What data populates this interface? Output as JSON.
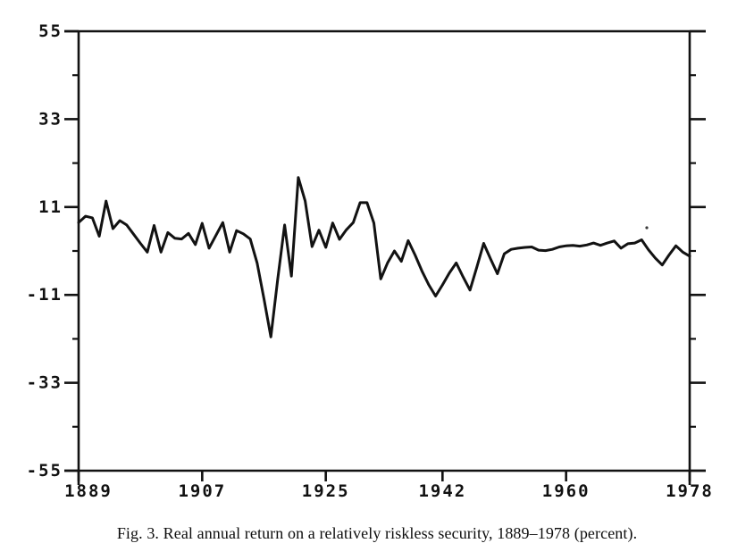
{
  "figure": {
    "caption": "Fig. 3.  Real annual return on a relatively riskless security, 1889–1978 (percent)."
  },
  "chart_data": {
    "type": "line",
    "title": "",
    "xlabel": "",
    "ylabel": "",
    "xlim": [
      1889,
      1978
    ],
    "ylim": [
      -55,
      55
    ],
    "x_ticks": [
      1889,
      1907,
      1925,
      1942,
      1960,
      1978
    ],
    "x_tick_labels": [
      "1889",
      "1907",
      "1925",
      "1942",
      "1960",
      "1978"
    ],
    "y_ticks": [
      55,
      33,
      11,
      -11,
      -33,
      -55
    ],
    "y_tick_labels": [
      "55",
      "33",
      "11",
      "-11",
      "-33",
      "-55"
    ],
    "y_minor_ticks": [
      44,
      22,
      0,
      -22,
      -44
    ],
    "grid": false,
    "frame": true,
    "legend": null,
    "line_color": "#121212",
    "background_color": "#ffffff",
    "series": [
      {
        "name": "Real annual return on a relatively riskless security (percent)",
        "x_start": 1889,
        "x_step": 1,
        "values": [
          7.1,
          8.7,
          8.3,
          3.7,
          12.5,
          5.6,
          7.6,
          6.5,
          4.2,
          1.9,
          -0.3,
          6.4,
          -0.3,
          4.6,
          3.2,
          3.0,
          4.4,
          1.6,
          6.9,
          0.7,
          3.9,
          7.1,
          -0.3,
          5.1,
          4.3,
          3.0,
          -3.0,
          -12.0,
          -21.5,
          -7.0,
          6.5,
          -6.3,
          18.4,
          12.5,
          1.1,
          5.2,
          0.9,
          7.0,
          2.9,
          5.3,
          7.1,
          12.1,
          12.1,
          7.0,
          -7.0,
          -3.0,
          0.0,
          -2.6,
          2.6,
          -1.0,
          -5.0,
          -8.5,
          -11.3,
          -8.5,
          -5.5,
          -3.0,
          -6.5,
          -9.8,
          -4.0,
          1.9,
          -2.0,
          -5.7,
          -0.7,
          0.4,
          0.7,
          0.9,
          1.0,
          0.2,
          0.1,
          0.4,
          1.0,
          1.3,
          1.4,
          1.2,
          1.5,
          2.0,
          1.4,
          2.0,
          2.5,
          0.7,
          1.8,
          2.0,
          2.8,
          0.3,
          -1.8,
          -3.5,
          -1.0,
          1.3,
          -0.3,
          -1.3
        ]
      }
    ]
  }
}
